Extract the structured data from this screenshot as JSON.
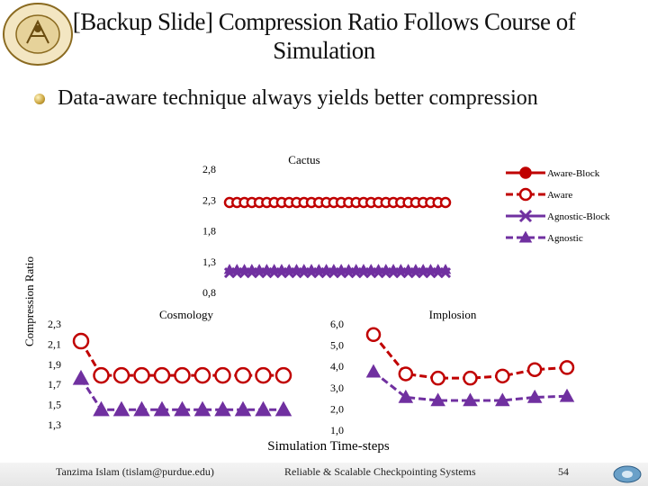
{
  "slide": {
    "title_line1": "[Backup Slide] Compression Ratio Follows Course of",
    "title_line2": "Simulation",
    "bullet": "Data-aware technique always yields better compression",
    "logo_text": "purdue university",
    "y_axis_label": "Compression Ratio",
    "x_axis_label": "Simulation Time-steps"
  },
  "footer": {
    "author": "Tanzima Islam (tislam@purdue.edu)",
    "center": "Reliable & Scalable Checkpointing Systems",
    "page": "54"
  },
  "legend": [
    {
      "name": "Aware-Block",
      "color": "#c00000",
      "marker": "circle-filled",
      "dash": "solid"
    },
    {
      "name": "Aware",
      "color": "#c00000",
      "marker": "circle-open",
      "dash": "dashed"
    },
    {
      "name": "Agnostic-Block",
      "color": "#7030a0",
      "marker": "x",
      "dash": "solid"
    },
    {
      "name": "Agnostic",
      "color": "#7030a0",
      "marker": "triangle",
      "dash": "dashed"
    }
  ],
  "chart_data": [
    {
      "type": "line",
      "title": "Cactus",
      "x": [
        1,
        2,
        3,
        4,
        5,
        6,
        7,
        8,
        9,
        10,
        11,
        12,
        13,
        14,
        15,
        16,
        17,
        18,
        19,
        20,
        21,
        22,
        23,
        24,
        25,
        26,
        27,
        28,
        29,
        30
      ],
      "y_ticks": [
        "2,8",
        "2,3",
        "1,8",
        "1,3",
        "0,8"
      ],
      "ylim": [
        0.8,
        2.8
      ],
      "series": [
        {
          "name": "Aware-Block",
          "values": [
            2.26,
            2.26,
            2.26,
            2.26,
            2.26,
            2.26,
            2.26,
            2.26,
            2.26,
            2.26,
            2.26,
            2.26,
            2.26,
            2.26,
            2.26,
            2.26,
            2.26,
            2.26,
            2.26,
            2.26,
            2.26,
            2.26,
            2.26,
            2.26,
            2.26,
            2.26,
            2.26,
            2.26,
            2.26,
            2.26
          ]
        },
        {
          "name": "Aware",
          "values": [
            2.26,
            2.26,
            2.26,
            2.26,
            2.26,
            2.26,
            2.26,
            2.26,
            2.26,
            2.26,
            2.26,
            2.26,
            2.26,
            2.26,
            2.26,
            2.26,
            2.26,
            2.26,
            2.26,
            2.26,
            2.26,
            2.26,
            2.26,
            2.26,
            2.26,
            2.26,
            2.26,
            2.26,
            2.26,
            2.26
          ]
        },
        {
          "name": "Agnostic-Block",
          "values": [
            1.12,
            1.12,
            1.12,
            1.12,
            1.12,
            1.12,
            1.12,
            1.12,
            1.12,
            1.12,
            1.12,
            1.12,
            1.12,
            1.12,
            1.12,
            1.12,
            1.12,
            1.12,
            1.12,
            1.12,
            1.12,
            1.12,
            1.12,
            1.12,
            1.12,
            1.12,
            1.12,
            1.12,
            1.12,
            1.12
          ]
        },
        {
          "name": "Agnostic",
          "values": [
            1.17,
            1.17,
            1.17,
            1.17,
            1.17,
            1.17,
            1.17,
            1.17,
            1.17,
            1.17,
            1.17,
            1.17,
            1.17,
            1.17,
            1.17,
            1.17,
            1.17,
            1.17,
            1.17,
            1.17,
            1.17,
            1.17,
            1.17,
            1.17,
            1.17,
            1.17,
            1.17,
            1.17,
            1.17,
            1.17
          ]
        }
      ]
    },
    {
      "type": "line",
      "title": "Cosmology",
      "x": [
        1,
        2,
        3,
        4,
        5,
        6,
        7,
        8,
        9,
        10,
        11
      ],
      "y_ticks": [
        "2,3",
        "2,1",
        "1,9",
        "1,7",
        "1,5",
        "1,3"
      ],
      "ylim": [
        1.3,
        2.3
      ],
      "series": [
        {
          "name": "Aware",
          "values": [
            2.13,
            1.79,
            1.79,
            1.79,
            1.79,
            1.79,
            1.79,
            1.79,
            1.79,
            1.79,
            1.79
          ]
        },
        {
          "name": "Agnostic",
          "values": [
            1.76,
            1.45,
            1.45,
            1.45,
            1.45,
            1.45,
            1.45,
            1.45,
            1.45,
            1.45,
            1.45
          ]
        }
      ]
    },
    {
      "type": "line",
      "title": "Implosion",
      "x": [
        1,
        2,
        3,
        4,
        5,
        6,
        7
      ],
      "y_ticks": [
        "6,0",
        "5,0",
        "4,0",
        "3,0",
        "2,0",
        "1,0"
      ],
      "ylim": [
        1.0,
        6.0
      ],
      "series": [
        {
          "name": "Aware",
          "values": [
            5.5,
            3.65,
            3.45,
            3.45,
            3.55,
            3.85,
            3.95
          ]
        },
        {
          "name": "Agnostic",
          "values": [
            3.75,
            2.55,
            2.4,
            2.4,
            2.4,
            2.55,
            2.6
          ]
        }
      ]
    }
  ]
}
